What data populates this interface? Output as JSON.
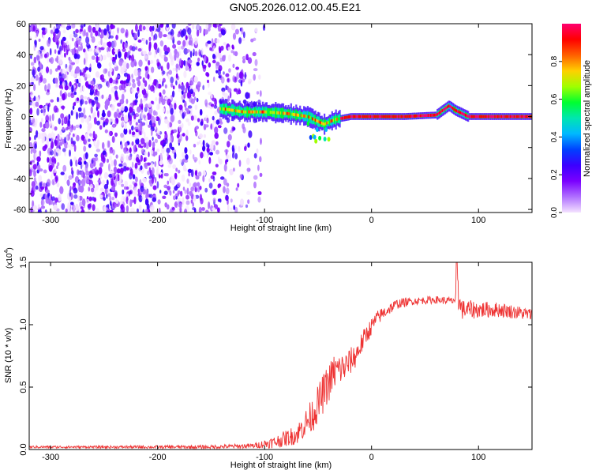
{
  "title": "GN05.2026.012.00.45.E21",
  "chart_data": [
    {
      "type": "heatmap",
      "xlabel": "Height of straight line (km)",
      "ylabel": "Frequency (Hz)",
      "xlim": [
        -320,
        150
      ],
      "ylim": [
        -62,
        60
      ],
      "x_ticks": [
        -300,
        -200,
        -100,
        0,
        100
      ],
      "y_ticks": [
        -60,
        -40,
        -20,
        0,
        20,
        40,
        60
      ],
      "colorbar": {
        "label": "Normalized spectral amplitude",
        "range": [
          0.0,
          1.0
        ],
        "ticks": [
          0.0,
          0.2,
          0.4,
          0.6,
          0.8
        ],
        "colors": [
          "#f4e2ff",
          "#b070ff",
          "#7a00ff",
          "#3b00ff",
          "#0040ff",
          "#00b8ff",
          "#00e6b0",
          "#00ff30",
          "#a0ff00",
          "#ffd000",
          "#ff6000",
          "#ff0000",
          "#ff0070"
        ]
      },
      "features": [
        {
          "description": "broadband noise region",
          "x_range": [
            -320,
            -125
          ],
          "freq_range": [
            -62,
            60
          ],
          "amplitude": [
            0.05,
            0.3
          ]
        },
        {
          "description": "signal trace",
          "x": [
            -140,
            -120,
            -100,
            -80,
            -60,
            -45,
            -35,
            -20,
            0,
            30,
            60,
            72,
            78,
            90,
            110,
            150
          ],
          "freq": [
            5,
            3,
            3,
            2,
            0,
            -5,
            -2,
            0,
            0,
            0,
            1,
            7,
            4,
            0,
            0,
            0
          ]
        }
      ]
    },
    {
      "type": "line",
      "xlabel": "Height of straight line (km)",
      "ylabel": "SNR (10 * v/v)",
      "y_scale_label": "(x10",
      "y_scale_exponent": "4",
      "y_scale_close": ")",
      "xlim": [
        -320,
        150
      ],
      "ylim": [
        0,
        1.5
      ],
      "x_ticks": [
        -300,
        -200,
        -100,
        0,
        100
      ],
      "y_ticks": [
        0.0,
        0.5,
        1.0,
        1.5
      ],
      "color": "#ee3333",
      "series": [
        {
          "name": "SNR",
          "x": [
            -320,
            -250,
            -150,
            -110,
            -90,
            -70,
            -55,
            -45,
            -35,
            -25,
            -15,
            -5,
            5,
            15,
            25,
            40,
            60,
            75,
            80,
            85,
            100,
            120,
            150
          ],
          "mean": [
            0.02,
            0.02,
            0.02,
            0.03,
            0.06,
            0.12,
            0.28,
            0.45,
            0.62,
            0.66,
            0.75,
            0.92,
            1.05,
            1.12,
            1.17,
            1.19,
            1.2,
            1.19,
            1.21,
            1.12,
            1.12,
            1.12,
            1.08
          ],
          "spread": [
            0.01,
            0.01,
            0.015,
            0.02,
            0.05,
            0.08,
            0.14,
            0.16,
            0.15,
            0.12,
            0.1,
            0.08,
            0.06,
            0.05,
            0.04,
            0.03,
            0.03,
            0.03,
            0.06,
            0.08,
            0.07,
            0.06,
            0.05
          ]
        }
      ]
    }
  ]
}
